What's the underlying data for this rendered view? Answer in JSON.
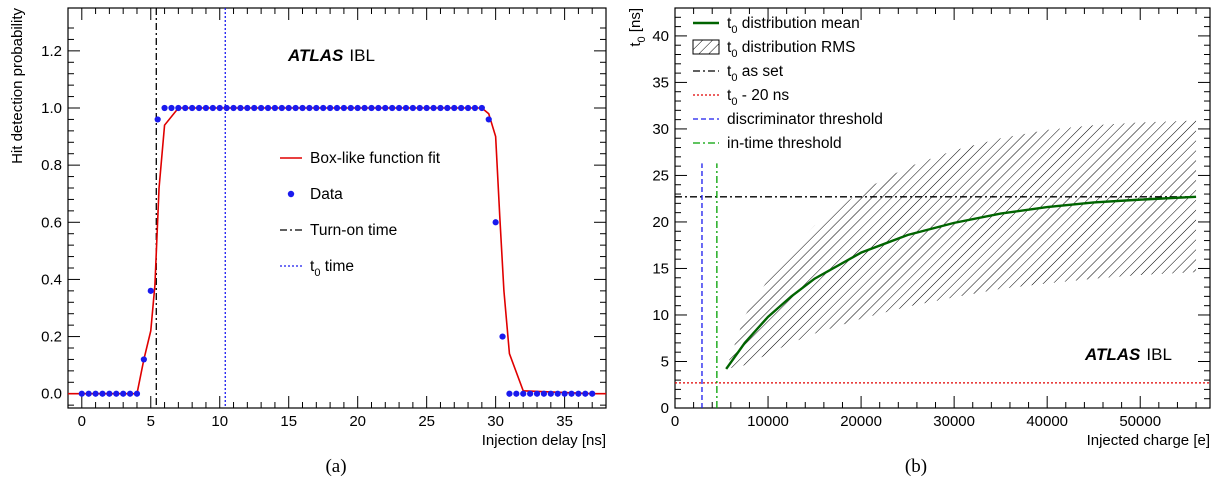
{
  "chart_data": [
    {
      "panel_label": "(a)",
      "type": "line",
      "title": "",
      "xlabel": "Injection delay [ns]",
      "ylabel": "Hit detection probability",
      "xlim": [
        -1,
        38
      ],
      "ylim": [
        -0.05,
        1.35
      ],
      "xticks": [
        0,
        5,
        10,
        15,
        20,
        25,
        30,
        35
      ],
      "yticks": [
        0.0,
        0.2,
        0.4,
        0.6,
        0.8,
        1.0,
        1.2
      ],
      "ytick_labels": [
        "0.0",
        "0.2",
        "0.4",
        "0.6",
        "0.8",
        "1.0",
        "1.2"
      ],
      "grid": false,
      "legend_position": "center-right",
      "atlas_label": {
        "bold": "ATLAS",
        "rest": "IBL"
      },
      "series": [
        {
          "name": "Box-like function fit",
          "kind": "line",
          "color": "#e00000",
          "x": [
            -1,
            0,
            1,
            2,
            3,
            4,
            4.5,
            5,
            5.3,
            5.6,
            6,
            7,
            29,
            29.5,
            30,
            30.3,
            30.6,
            31,
            32,
            37,
            38
          ],
          "y": [
            0,
            0,
            0,
            0,
            0,
            0,
            0.12,
            0.22,
            0.38,
            0.72,
            0.94,
            1.0,
            1.0,
            0.98,
            0.9,
            0.62,
            0.36,
            0.14,
            0.01,
            0,
            0
          ]
        },
        {
          "name": "Data",
          "kind": "points",
          "color": "#1a1aee",
          "x": [
            0,
            0.5,
            1,
            1.5,
            2,
            2.5,
            3,
            3.5,
            4,
            4.5,
            5,
            5.5,
            6,
            6.5,
            7,
            7.5,
            8,
            8.5,
            9,
            9.5,
            10,
            10.5,
            11,
            11.5,
            12,
            12.5,
            13,
            13.5,
            14,
            14.5,
            15,
            15.5,
            16,
            16.5,
            17,
            17.5,
            18,
            18.5,
            19,
            19.5,
            20,
            20.5,
            21,
            21.5,
            22,
            22.5,
            23,
            23.5,
            24,
            24.5,
            25,
            25.5,
            26,
            26.5,
            27,
            27.5,
            28,
            28.5,
            29,
            29.5,
            30,
            30.5,
            31,
            31.5,
            32,
            32.5,
            33,
            33.5,
            34,
            34.5,
            35,
            35.5,
            36,
            36.5,
            37
          ],
          "y": [
            0,
            0,
            0,
            0,
            0,
            0,
            0,
            0,
            0,
            0.12,
            0.36,
            0.96,
            1,
            1,
            1,
            1,
            1,
            1,
            1,
            1,
            1,
            1,
            1,
            1,
            1,
            1,
            1,
            1,
            1,
            1,
            1,
            1,
            1,
            1,
            1,
            1,
            1,
            1,
            1,
            1,
            1,
            1,
            1,
            1,
            1,
            1,
            1,
            1,
            1,
            1,
            1,
            1,
            1,
            1,
            1,
            1,
            1,
            1,
            1,
            0.96,
            0.6,
            0.2,
            0,
            0,
            0,
            0,
            0,
            0,
            0,
            0,
            0,
            0,
            0,
            0,
            0
          ]
        },
        {
          "name": "Turn-on time",
          "kind": "vline",
          "color": "#000000",
          "dash": "dash-dot",
          "x": 5.4
        },
        {
          "name": "time",
          "name_symbol": "t",
          "name_subscript": "0",
          "kind": "vline",
          "color": "#1a1aee",
          "dash": "dotted",
          "x": 10.4
        }
      ]
    },
    {
      "panel_label": "(b)",
      "type": "line",
      "title": "",
      "xlabel": "Injected charge [e]",
      "ylabel": "[ns]",
      "ylabel_symbol": "t",
      "ylabel_subscript": "0",
      "xlim": [
        0,
        57500
      ],
      "ylim": [
        0,
        43
      ],
      "xticks": [
        0,
        10000,
        20000,
        30000,
        40000,
        50000
      ],
      "yticks": [
        0,
        5,
        10,
        15,
        20,
        25,
        30,
        35,
        40
      ],
      "grid": false,
      "legend_position": "top-left",
      "atlas_label": {
        "bold": "ATLAS",
        "rest": "IBL"
      },
      "series": [
        {
          "name": "distribution mean",
          "name_symbol": "t",
          "name_subscript": "0",
          "kind": "line",
          "color": "#006400",
          "x": [
            5500,
            7500,
            10000,
            12500,
            15000,
            20000,
            25000,
            30000,
            35000,
            40000,
            45000,
            50000,
            56000
          ],
          "y": [
            4.2,
            7.0,
            9.8,
            12.0,
            13.9,
            16.7,
            18.6,
            19.9,
            20.9,
            21.6,
            22.1,
            22.4,
            22.7
          ]
        },
        {
          "name": "distribution RMS",
          "name_symbol": "t",
          "name_subscript": "0",
          "kind": "band",
          "color": "#000000",
          "x": [
            5500,
            7500,
            10000,
            12500,
            15000,
            20000,
            25000,
            30000,
            35000,
            40000,
            45000,
            50000,
            56000
          ],
          "y_low": [
            4.2,
            4.6,
            5.8,
            7.0,
            8.0,
            9.6,
            10.9,
            11.9,
            12.8,
            13.4,
            13.9,
            14.3,
            14.6
          ],
          "y_high": [
            4.2,
            9.9,
            13.8,
            17.0,
            19.6,
            23.3,
            25.9,
            27.7,
            29.0,
            29.9,
            30.4,
            30.7,
            30.9
          ]
        },
        {
          "name": "as set",
          "name_symbol": "t",
          "name_subscript": "0",
          "kind": "hline",
          "color": "#000000",
          "dash": "dash-dot",
          "y": 22.7
        },
        {
          "name": "- 20 ns",
          "name_symbol": "t",
          "name_subscript": "0",
          "kind": "hline",
          "color": "#e00000",
          "dash": "dotted",
          "y": 2.7
        },
        {
          "name": "discriminator threshold",
          "kind": "vline",
          "color": "#1a1aee",
          "dash": "dashed",
          "x": 2900,
          "y_top": 26.3
        },
        {
          "name": "in-time threshold",
          "kind": "vline",
          "color": "#00a000",
          "dash": "dash-dot",
          "x": 4500,
          "y_top": 26.3
        }
      ]
    }
  ]
}
